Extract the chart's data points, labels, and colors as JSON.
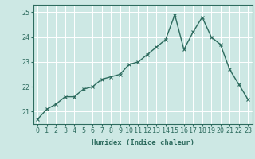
{
  "x": [
    0,
    1,
    2,
    3,
    4,
    5,
    6,
    7,
    8,
    9,
    10,
    11,
    12,
    13,
    14,
    15,
    16,
    17,
    18,
    19,
    20,
    21,
    22,
    23
  ],
  "y": [
    20.7,
    21.1,
    21.3,
    21.6,
    21.6,
    21.9,
    22.0,
    22.3,
    22.4,
    22.5,
    22.9,
    23.0,
    23.3,
    23.6,
    23.9,
    24.9,
    23.5,
    24.2,
    24.8,
    24.0,
    23.7,
    22.7,
    22.1,
    21.5
  ],
  "line_color": "#2d6b5e",
  "marker": "x",
  "marker_size": 2.5,
  "line_width": 1.0,
  "bg_color": "#cde8e4",
  "grid_color": "#ffffff",
  "xlabel": "Humidex (Indice chaleur)",
  "ylim": [
    20.5,
    25.3
  ],
  "yticks": [
    21,
    22,
    23,
    24,
    25
  ],
  "xticks": [
    0,
    1,
    2,
    3,
    4,
    5,
    6,
    7,
    8,
    9,
    10,
    11,
    12,
    13,
    14,
    15,
    16,
    17,
    18,
    19,
    20,
    21,
    22,
    23
  ],
  "xlabel_fontsize": 6.5,
  "tick_fontsize": 6.0,
  "tick_color": "#2d6b5e",
  "spine_color": "#2d6b5e"
}
